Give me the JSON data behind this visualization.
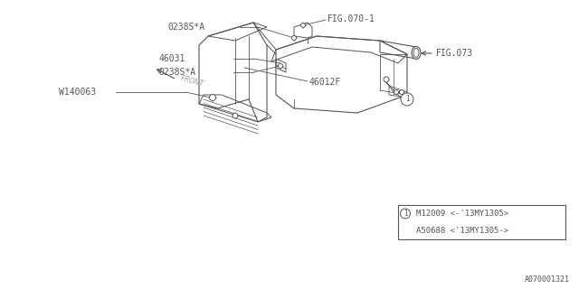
{
  "bg_color": "#ffffff",
  "line_color": "#555555",
  "text_color": "#555555",
  "title_bottom_right": "A070001321",
  "fig070_1_label": "FIG.070-1",
  "fig073_label": "FIG.073",
  "label_0238SA_top": "0238S*A",
  "label_46031": "46031",
  "label_0238SA_bot": "0238S*A",
  "label_46012F": "46012F",
  "label_W140063": "W140063",
  "label_front": "FRONT",
  "legend_line1": "M12009 <-'13MY1305>",
  "legend_line2": "A50688 <'13MY1305->",
  "font_size_label": 7.0,
  "font_size_legend": 6.5,
  "font_size_doc": 6.0
}
